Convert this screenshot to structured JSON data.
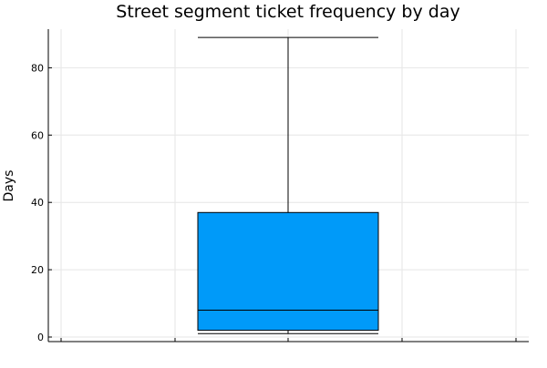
{
  "chart_data": {
    "type": "box",
    "title": "Street segment ticket frequency by day",
    "xlabel": "",
    "ylabel": "Days",
    "ylim": [
      0,
      92
    ],
    "y_ticks": [
      0,
      20,
      40,
      60,
      80
    ],
    "grid": true,
    "legend": "none",
    "series": [
      {
        "min": 1,
        "q1": 2,
        "median": 8,
        "q3": 37,
        "max": 89,
        "color": "#009af9"
      }
    ]
  }
}
